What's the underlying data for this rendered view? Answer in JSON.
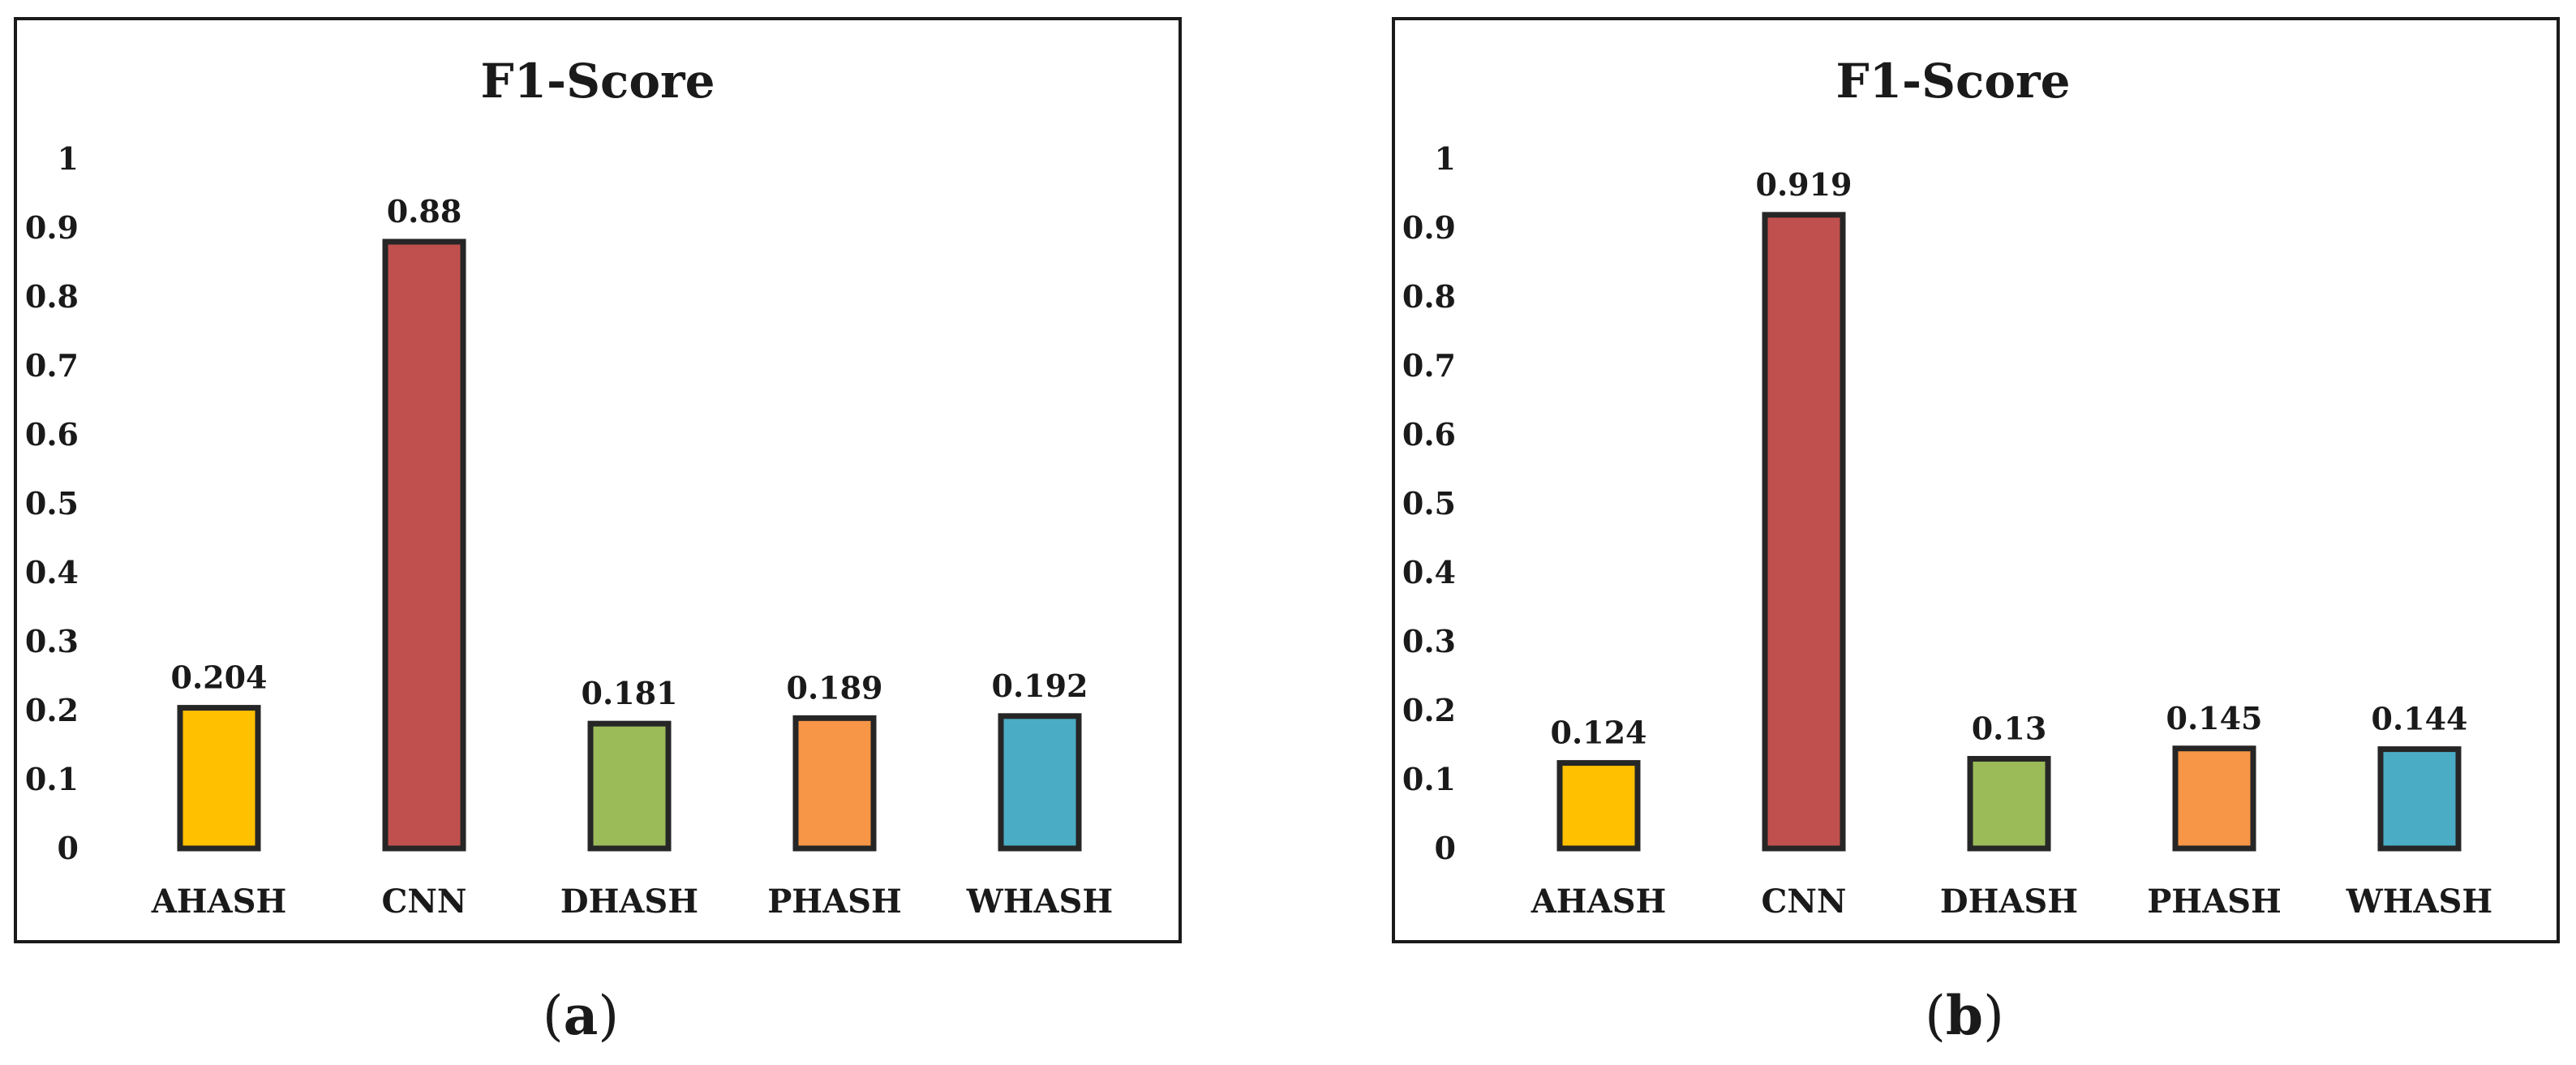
{
  "chart_data": [
    {
      "type": "bar",
      "title": "F1-Score",
      "caption_letter": "a",
      "categories": [
        "AHASH",
        "CNN",
        "DHASH",
        "PHASH",
        "WHASH"
      ],
      "values": [
        0.204,
        0.88,
        0.181,
        0.189,
        0.192
      ],
      "value_labels": [
        "0.204",
        "0.88",
        "0.181",
        "0.189",
        "0.192"
      ],
      "colors": [
        "#FFC000",
        "#C0504D",
        "#9BBB59",
        "#F79646",
        "#4BACC6"
      ],
      "ylim": [
        0,
        1
      ],
      "yticks": [
        "0",
        "0.1",
        "0.2",
        "0.3",
        "0.4",
        "0.5",
        "0.6",
        "0.7",
        "0.8",
        "0.9",
        "1"
      ],
      "xlabel": "",
      "ylabel": "",
      "grid": false,
      "legend": "none"
    },
    {
      "type": "bar",
      "title": "F1-Score",
      "caption_letter": "b",
      "categories": [
        "AHASH",
        "CNN",
        "DHASH",
        "PHASH",
        "WHASH"
      ],
      "values": [
        0.124,
        0.919,
        0.13,
        0.145,
        0.144
      ],
      "value_labels": [
        "0.124",
        "0.919",
        "0.13",
        "0.145",
        "0.144"
      ],
      "colors": [
        "#FFC000",
        "#C0504D",
        "#9BBB59",
        "#F79646",
        "#4BACC6"
      ],
      "ylim": [
        0,
        1
      ],
      "yticks": [
        "0",
        "0.1",
        "0.2",
        "0.3",
        "0.4",
        "0.5",
        "0.6",
        "0.7",
        "0.8",
        "0.9",
        "1"
      ],
      "xlabel": "",
      "ylabel": "",
      "grid": false,
      "legend": "none"
    }
  ]
}
